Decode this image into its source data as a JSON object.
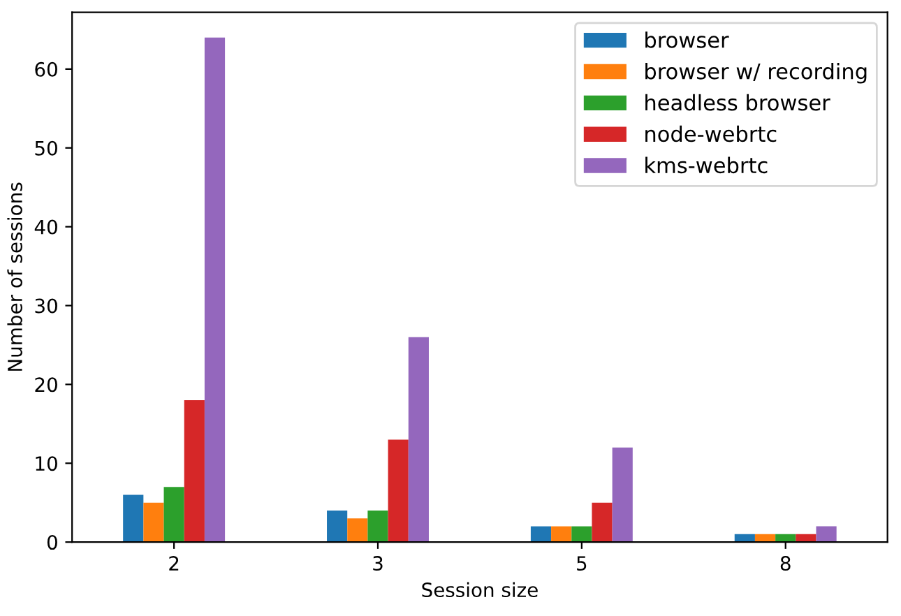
{
  "chart_data": {
    "type": "bar",
    "xlabel": "Session size",
    "ylabel": "Number of sessions",
    "categories": [
      "2",
      "3",
      "5",
      "8"
    ],
    "series": [
      {
        "name": "browser",
        "color": "#1f77b4",
        "values": [
          6,
          4,
          2,
          1
        ]
      },
      {
        "name": "browser w/ recording",
        "color": "#ff7f0e",
        "values": [
          5,
          3,
          2,
          1
        ]
      },
      {
        "name": "headless browser",
        "color": "#2ca02c",
        "values": [
          7,
          4,
          2,
          1
        ]
      },
      {
        "name": "node-webrtc",
        "color": "#d62728",
        "values": [
          18,
          13,
          5,
          1
        ]
      },
      {
        "name": "kms-webrtc",
        "color": "#9467bd",
        "values": [
          64,
          26,
          12,
          2
        ]
      }
    ],
    "ylim": [
      0,
      67.2
    ],
    "yticks": [
      0,
      10,
      20,
      30,
      40,
      50,
      60
    ],
    "grid": false,
    "legend": "top right"
  }
}
